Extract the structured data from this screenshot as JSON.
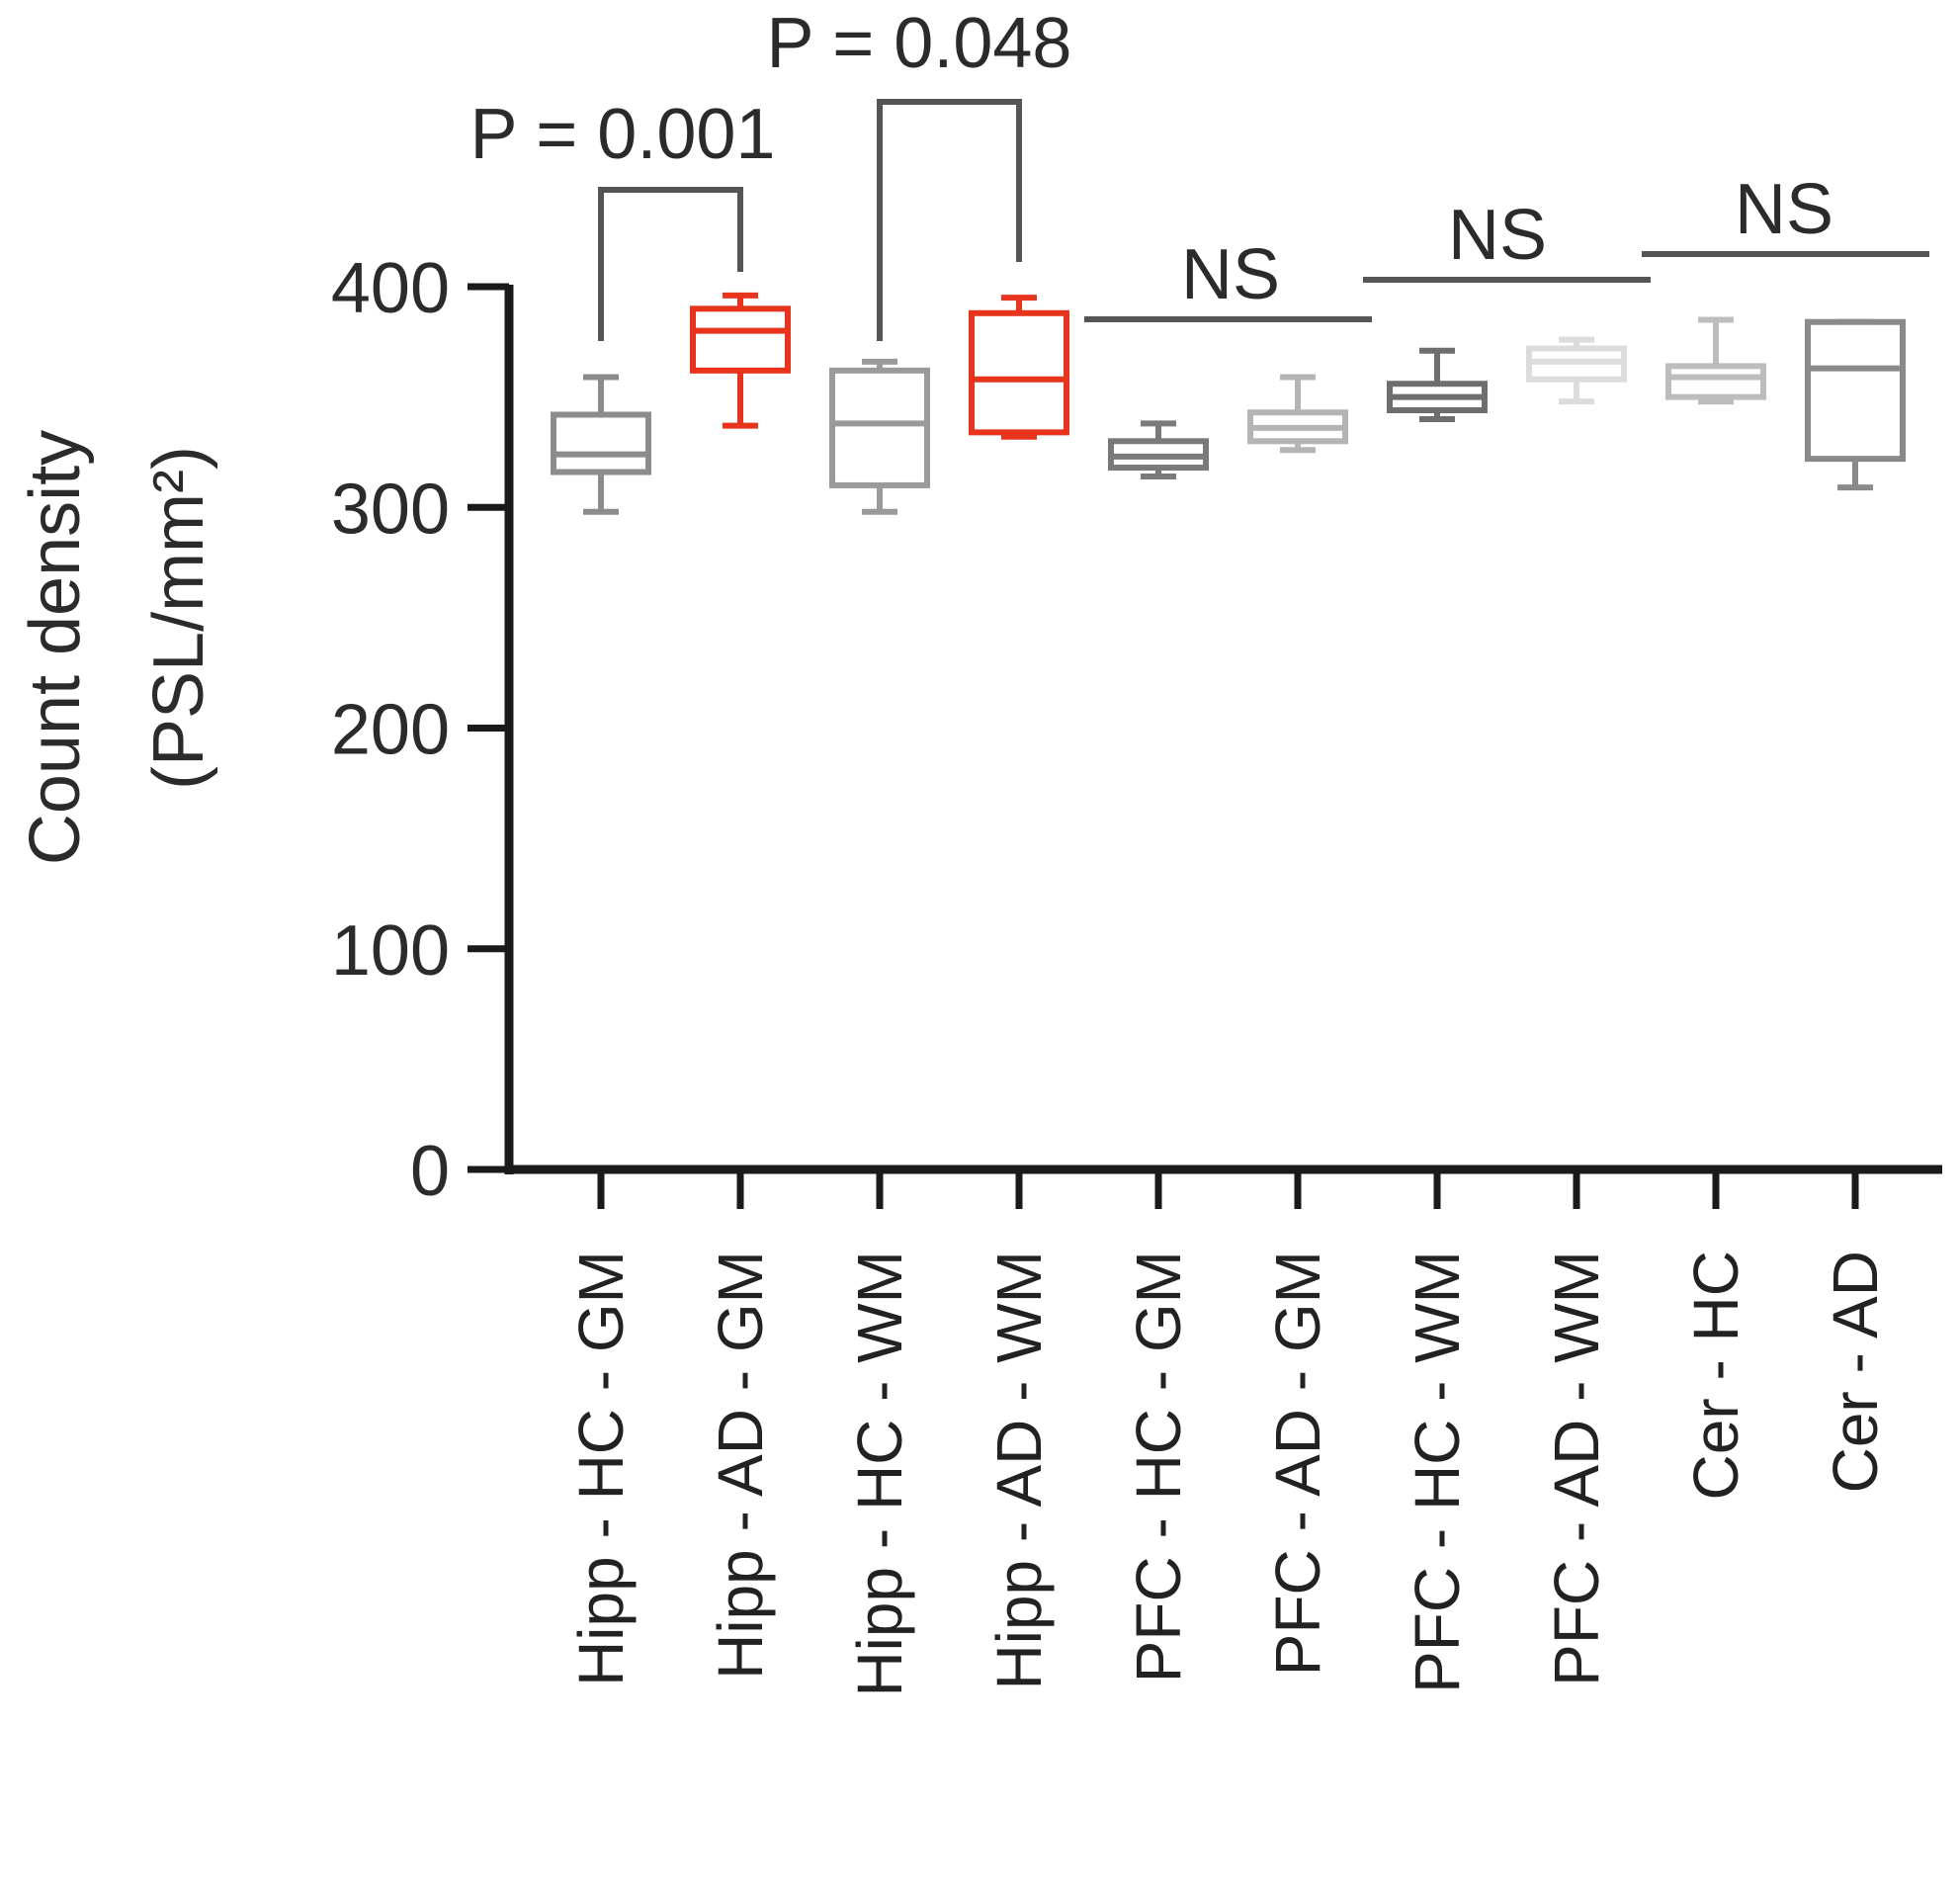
{
  "chart_data": {
    "type": "box",
    "ylabel_line1": "Count density",
    "ylabel_line2": "(PSL/mm²)",
    "ylim": [
      0,
      400
    ],
    "yticks": [
      0,
      100,
      200,
      300,
      400
    ],
    "grid": false,
    "categories": [
      "Hipp - HC - GM",
      "Hipp - AD - GM",
      "Hipp - HC - WM",
      "Hipp - AD - WM",
      "PFC - HC - GM",
      "PFC - AD - GM",
      "PFC - HC - WM",
      "PFC - AD - WM",
      "Cer - HC",
      "Cer - AD"
    ],
    "boxes": [
      {
        "min": 298,
        "q1": 316,
        "median": 324,
        "q3": 342,
        "max": 359,
        "color": "#8c8c8c"
      },
      {
        "min": 337,
        "q1": 362,
        "median": 380,
        "q3": 390,
        "max": 396,
        "color": "#e8341c"
      },
      {
        "min": 298,
        "q1": 310,
        "median": 338,
        "q3": 362,
        "max": 366,
        "color": "#9a9a9a"
      },
      {
        "min": 332,
        "q1": 334,
        "median": 358,
        "q3": 388,
        "max": 395,
        "color": "#e8341c"
      },
      {
        "min": 314,
        "q1": 318,
        "median": 323,
        "q3": 330,
        "max": 338,
        "color": "#7a7a7a"
      },
      {
        "min": 326,
        "q1": 330,
        "median": 336,
        "q3": 343,
        "max": 359,
        "color": "#b4b4b4"
      },
      {
        "min": 340,
        "q1": 344,
        "median": 350,
        "q3": 356,
        "max": 371,
        "color": "#6e6e6e"
      },
      {
        "min": 348,
        "q1": 358,
        "median": 366,
        "q3": 372,
        "max": 376,
        "color": "#dcdcdc"
      },
      {
        "min": 348,
        "q1": 350,
        "median": 359,
        "q3": 364,
        "max": 385,
        "color": "#bdbdbd"
      },
      {
        "min": 309,
        "q1": 322,
        "median": 363,
        "q3": 384,
        "max": 384,
        "color": "#8a8a8a"
      }
    ],
    "annotations": [
      {
        "text": "P = 0.001",
        "pair": [
          0,
          1
        ],
        "style": "bracket"
      },
      {
        "text": "P = 0.048",
        "pair": [
          2,
          3
        ],
        "style": "bracket"
      },
      {
        "text": "NS",
        "pair": [
          4,
          5
        ],
        "style": "line"
      },
      {
        "text": "NS",
        "pair": [
          6,
          7
        ],
        "style": "line"
      },
      {
        "text": "NS",
        "pair": [
          8,
          9
        ],
        "style": "line"
      }
    ]
  }
}
